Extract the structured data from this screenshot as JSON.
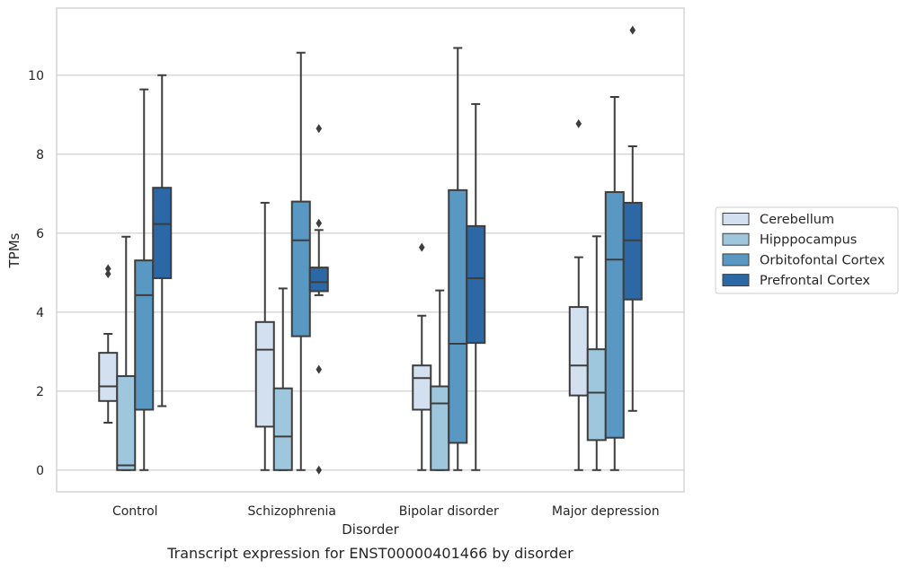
{
  "chart_data": {
    "type": "box",
    "title": "Transcript expression for ENST00000401466 by disorder",
    "xlabel": "Disorder",
    "ylabel": "TPMs",
    "ylim": [
      -0.55,
      11.7
    ],
    "yticks": [
      0,
      2,
      4,
      6,
      8,
      10
    ],
    "categories": [
      "Control",
      "Schizophrenia",
      "Bipolar disorder",
      "Major depression"
    ],
    "grid": "horizontal",
    "legend_position": "right",
    "series": [
      {
        "name": "Cerebellum",
        "color": "#d2e0f0",
        "boxes": [
          {
            "whislo": 1.2,
            "q1": 1.75,
            "med": 2.12,
            "q3": 2.97,
            "whishi": 3.45,
            "fliers": [
              4.97,
              5.1
            ]
          },
          {
            "whislo": 0.0,
            "q1": 1.1,
            "med": 3.05,
            "q3": 3.75,
            "whishi": 6.77,
            "fliers": []
          },
          {
            "whislo": 0.0,
            "q1": 1.53,
            "med": 2.33,
            "q3": 2.65,
            "whishi": 3.91,
            "fliers": [
              5.64
            ]
          },
          {
            "whislo": 0.0,
            "q1": 1.89,
            "med": 2.65,
            "q3": 4.13,
            "whishi": 5.39,
            "fliers": [
              8.77
            ]
          }
        ]
      },
      {
        "name": "Hipppocampus",
        "color": "#9ec6dc",
        "boxes": [
          {
            "whislo": 0.0,
            "q1": 0.0,
            "med": 0.12,
            "q3": 2.38,
            "whishi": 5.91,
            "fliers": []
          },
          {
            "whislo": 0.0,
            "q1": 0.0,
            "med": 0.85,
            "q3": 2.07,
            "whishi": 4.6,
            "fliers": []
          },
          {
            "whislo": 0.0,
            "q1": 0.0,
            "med": 1.69,
            "q3": 2.12,
            "whishi": 4.55,
            "fliers": []
          },
          {
            "whislo": 0.0,
            "q1": 0.76,
            "med": 1.96,
            "q3": 3.06,
            "whishi": 5.92,
            "fliers": []
          }
        ]
      },
      {
        "name": "Orbitofontal Cortex",
        "color": "#5a98c4",
        "boxes": [
          {
            "whislo": 0.0,
            "q1": 1.53,
            "med": 4.43,
            "q3": 5.31,
            "whishi": 9.64,
            "fliers": []
          },
          {
            "whislo": 0.0,
            "q1": 3.39,
            "med": 5.82,
            "q3": 6.8,
            "whishi": 10.57,
            "fliers": []
          },
          {
            "whislo": 0.0,
            "q1": 0.69,
            "med": 3.2,
            "q3": 7.09,
            "whishi": 10.69,
            "fliers": []
          },
          {
            "whislo": 0.0,
            "q1": 0.82,
            "med": 5.33,
            "q3": 7.04,
            "whishi": 9.45,
            "fliers": []
          }
        ]
      },
      {
        "name": "Prefrontal Cortex",
        "color": "#2c68a6",
        "boxes": [
          {
            "whislo": 1.62,
            "q1": 4.86,
            "med": 6.23,
            "q3": 7.15,
            "whishi": 10.0,
            "fliers": []
          },
          {
            "whislo": 4.43,
            "q1": 4.53,
            "med": 4.76,
            "q3": 5.13,
            "whishi": 6.08,
            "fliers": [
              8.65,
              6.25,
              2.55,
              0.0
            ]
          },
          {
            "whislo": 0.0,
            "q1": 3.22,
            "med": 4.86,
            "q3": 6.18,
            "whishi": 9.27,
            "fliers": []
          },
          {
            "whislo": 1.5,
            "q1": 4.32,
            "med": 5.82,
            "q3": 6.77,
            "whishi": 8.2,
            "fliers": [
              11.14
            ]
          }
        ]
      }
    ]
  }
}
